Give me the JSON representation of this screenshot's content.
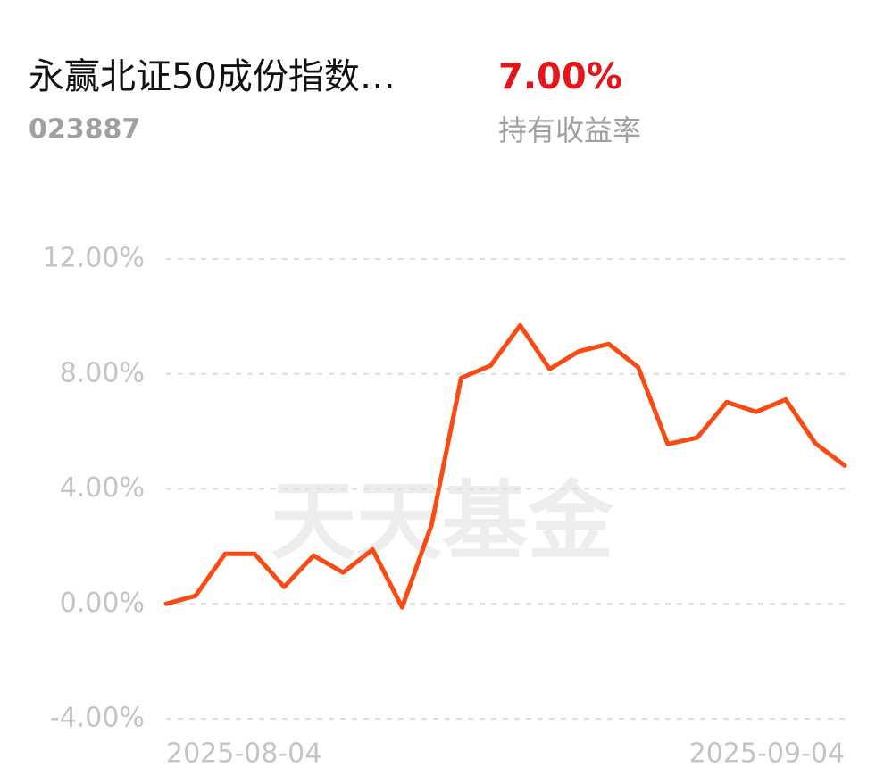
{
  "header": {
    "fund_name": "永赢北证50成份指数…",
    "fund_code": "023887",
    "return_value": "7.00%",
    "return_label": "持有收益率"
  },
  "watermark": "天天基金",
  "chart_data": {
    "type": "line",
    "categories": [
      "2025-08-04",
      null,
      null,
      null,
      null,
      null,
      null,
      null,
      null,
      null,
      null,
      null,
      null,
      null,
      null,
      null,
      null,
      null,
      null,
      null,
      null,
      null,
      null,
      "2025-09-04"
    ],
    "series": [
      {
        "color": "#fa4a14",
        "values": [
          0.0,
          0.28,
          1.74,
          1.74,
          0.59,
          1.68,
          1.09,
          1.89,
          -0.12,
          2.76,
          7.86,
          8.29,
          9.69,
          8.17,
          8.79,
          9.04,
          8.23,
          5.56,
          5.78,
          7.02,
          6.68,
          7.11,
          5.59,
          4.81
        ]
      }
    ],
    "ylim": [
      -4,
      12
    ],
    "yticks": [
      {
        "value": 12,
        "label": "12.00%"
      },
      {
        "value": 8,
        "label": "8.00%"
      },
      {
        "value": 4,
        "label": "4.00%"
      },
      {
        "value": 0,
        "label": "0.00%"
      },
      {
        "value": -4,
        "label": "-4.00%"
      }
    ],
    "grid": true
  }
}
